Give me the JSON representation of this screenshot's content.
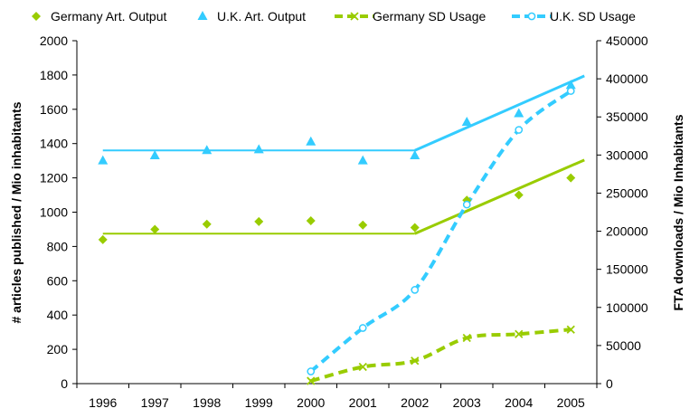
{
  "chart_data": {
    "type": "scatter",
    "title": "",
    "xlabel": "",
    "ylabel": "# articles published / Mio inhabitants",
    "y2label": "FTA downloads / Mio Inhabitants",
    "categories": [
      "1996",
      "1997",
      "1998",
      "1999",
      "2000",
      "2001",
      "2002",
      "2003",
      "2004",
      "2005"
    ],
    "ylim": [
      0,
      2000
    ],
    "yticks": [
      0,
      200,
      400,
      600,
      800,
      1000,
      1200,
      1400,
      1600,
      1800,
      2000
    ],
    "y2lim": [
      0,
      450000
    ],
    "y2ticks": [
      0,
      50000,
      100000,
      150000,
      200000,
      250000,
      300000,
      350000,
      400000,
      450000
    ],
    "legend_position": "top",
    "grid": false,
    "series": [
      {
        "name": "Germany Art. Output",
        "axis": "left",
        "marker": "diamond",
        "color": "#99cc00",
        "values": [
          840,
          900,
          930,
          945,
          950,
          925,
          910,
          1070,
          1100,
          1200
        ]
      },
      {
        "name": "U.K. Art. Output",
        "axis": "left",
        "marker": "triangle",
        "color": "#33ccff",
        "values": [
          1300,
          1330,
          1360,
          1365,
          1410,
          1300,
          1330,
          1525,
          1575,
          1740
        ]
      },
      {
        "name": "Germany SD Usage",
        "axis": "right",
        "marker": "x",
        "line": "dashed",
        "color": "#99cc00",
        "values": [
          null,
          null,
          null,
          null,
          3500,
          22000,
          30000,
          60000,
          65000,
          71000
        ]
      },
      {
        "name": "U.K. SD Usage",
        "axis": "right",
        "marker": "circle",
        "line": "dashed",
        "color": "#33ccff",
        "values": [
          null,
          null,
          null,
          null,
          16000,
          73000,
          123000,
          235000,
          333000,
          384000
        ]
      }
    ],
    "trend_lines": [
      {
        "series": "Germany Art. Output",
        "x_from": "1996",
        "x_to": "2002",
        "y_from": 875,
        "y_to": 875
      },
      {
        "series": "Germany Art. Output",
        "x_from": "2002",
        "x_to": "2005",
        "y_from": 875,
        "y_to": 1270
      },
      {
        "series": "U.K. Art. Output",
        "x_from": "1996",
        "x_to": "2002",
        "y_from": 1360,
        "y_to": 1360
      },
      {
        "series": "U.K. Art. Output",
        "x_from": "2002",
        "x_to": "2005",
        "y_from": 1360,
        "y_to": 1760
      }
    ]
  }
}
